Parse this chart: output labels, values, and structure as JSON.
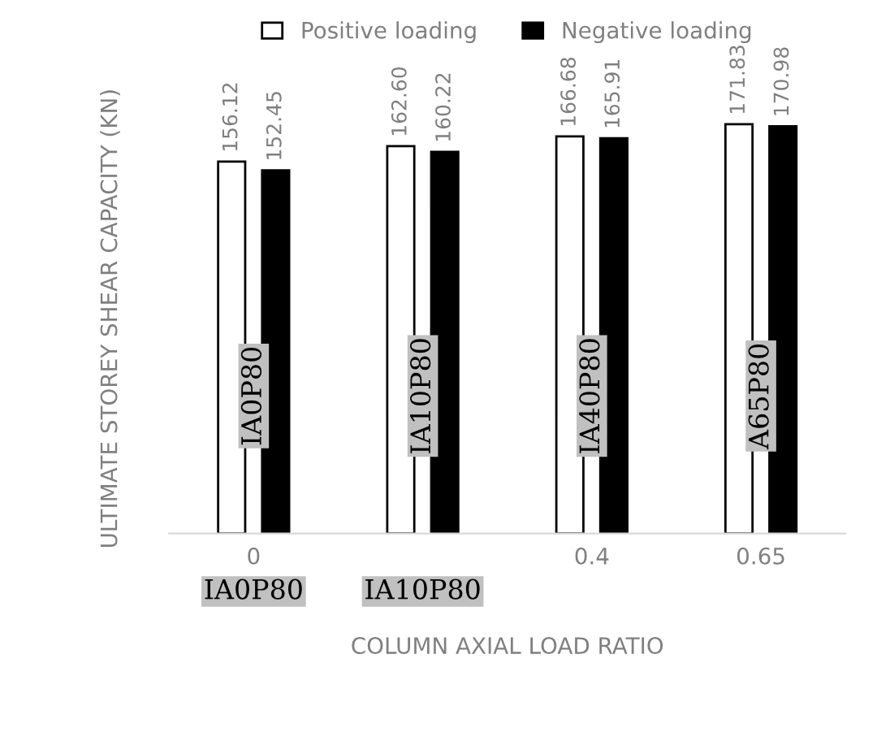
{
  "chart_data": {
    "type": "bar",
    "xlabel": "COLUMN AXIAL LOAD RATIO",
    "ylabel": "ULTIMATE STOREY SHEAR CAPACITY (KN)",
    "categories": [
      "0",
      null,
      "0.4",
      "0.65"
    ],
    "series": [
      {
        "name": "Positive loading",
        "color": "#ffffff",
        "values": [
          156.12,
          162.6,
          166.68,
          171.83
        ],
        "value_labels": [
          "156.12",
          "162.60",
          "166.68",
          "171.83"
        ]
      },
      {
        "name": "Negative loading",
        "color": "#000000",
        "values": [
          152.45,
          160.22,
          165.91,
          170.98
        ],
        "value_labels": [
          "152.45",
          "160.22",
          "165.91",
          "170.98"
        ]
      }
    ],
    "tick_labels": "x",
    "legend": "top",
    "annotations": [
      "IA0P80",
      "IA10P80",
      "IA40P80",
      "A65P80",
      "IA0P80",
      "IA10P80"
    ]
  }
}
